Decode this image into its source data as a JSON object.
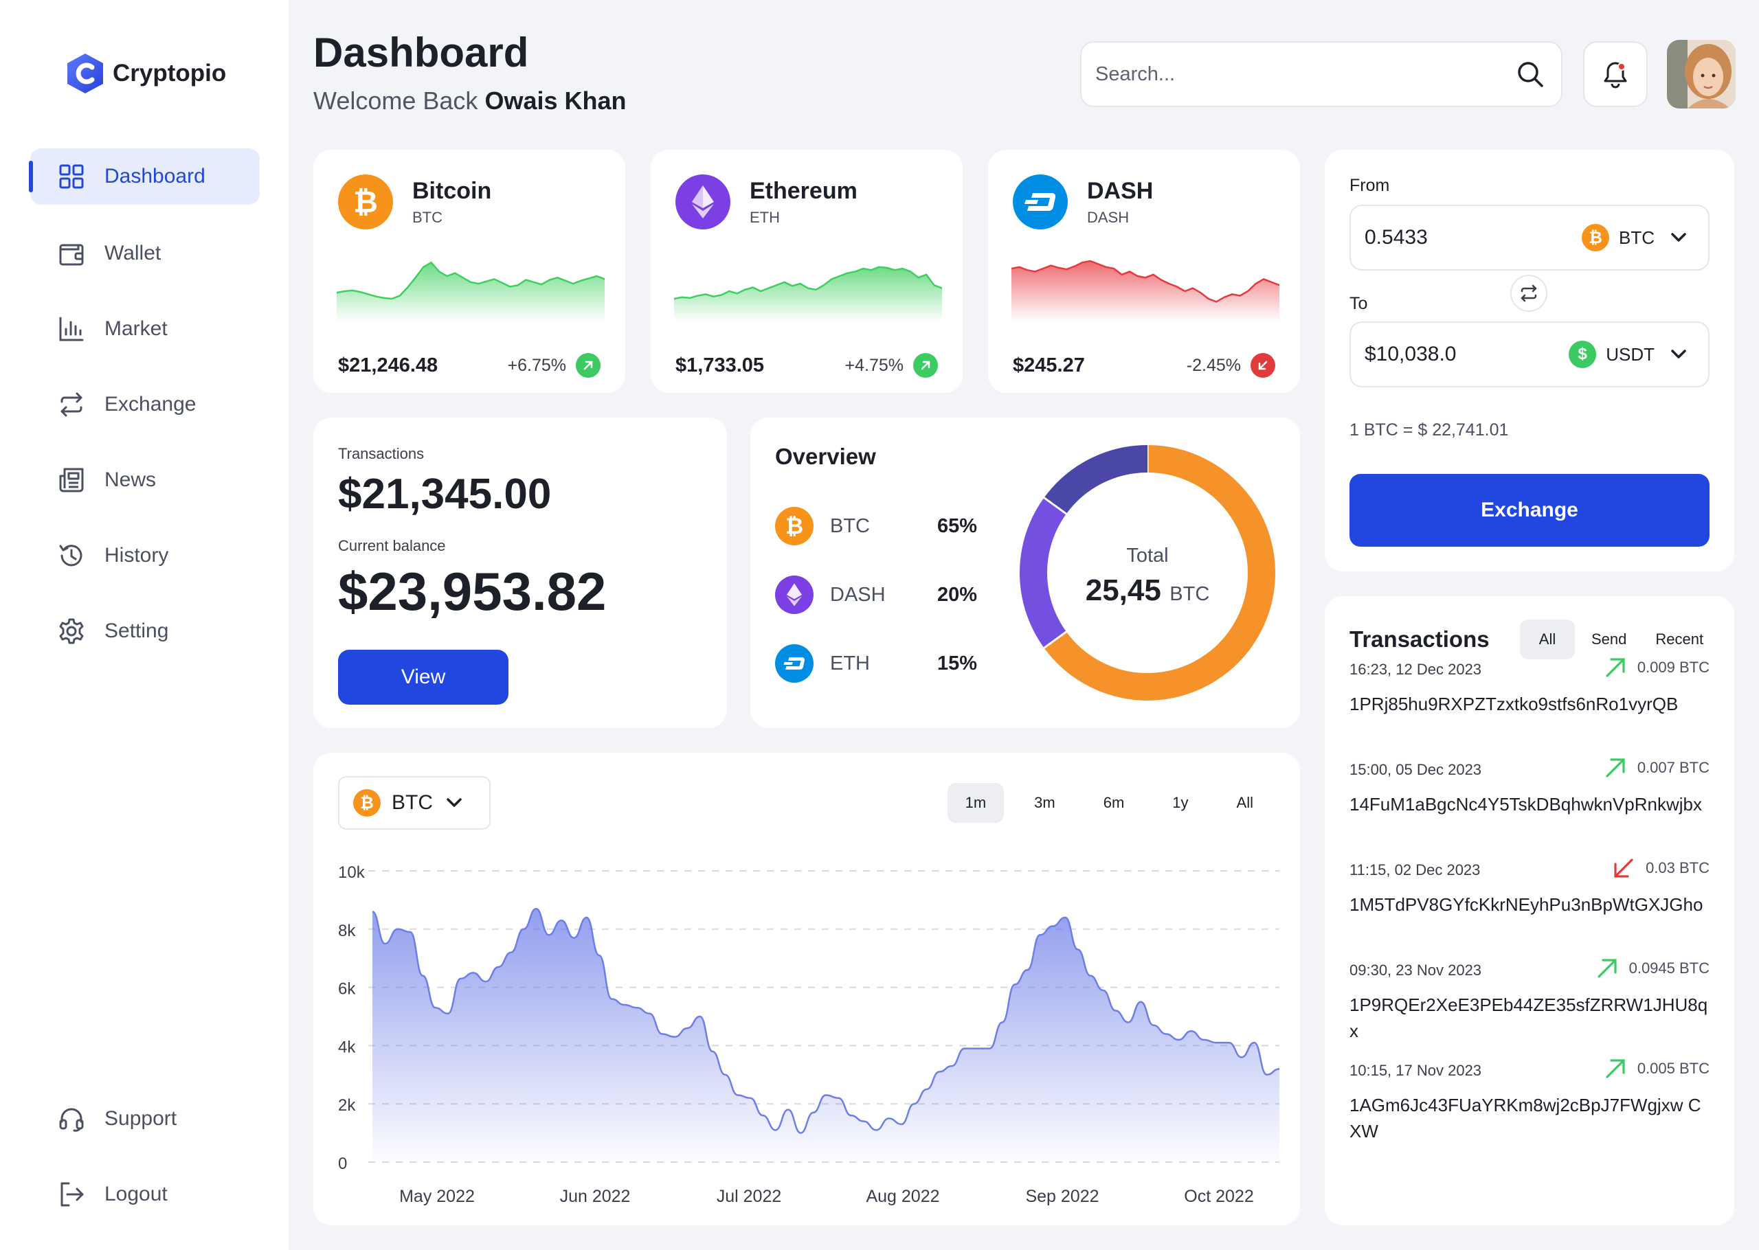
{
  "brand": {
    "name": "Cryptopio"
  },
  "sidebar": {
    "items": [
      {
        "label": "Dashboard",
        "icon": "grid-icon",
        "active": true
      },
      {
        "label": "Wallet",
        "icon": "wallet-icon"
      },
      {
        "label": "Market",
        "icon": "bar-chart-icon"
      },
      {
        "label": "Exchange",
        "icon": "exchange-icon"
      },
      {
        "label": "News",
        "icon": "newspaper-icon"
      },
      {
        "label": "History",
        "icon": "history-icon"
      },
      {
        "label": "Setting",
        "icon": "gear-icon"
      }
    ],
    "bottom": [
      {
        "label": "Support",
        "icon": "headset-icon"
      },
      {
        "label": "Logout",
        "icon": "logout-icon"
      }
    ]
  },
  "header": {
    "title": "Dashboard",
    "welcome_prefix": "Welcome Back",
    "user_name": "Owais Khan",
    "search_placeholder": "Search..."
  },
  "coins": [
    {
      "name": "Bitcoin",
      "symbol": "BTC",
      "price": "$21,246.48",
      "change": "+6.75%",
      "trend": "up",
      "color": "#f7931a",
      "spark": [
        38,
        40,
        41,
        39,
        36,
        33,
        31,
        30,
        34,
        45,
        58,
        72,
        78,
        66,
        60,
        64,
        58,
        52,
        50,
        53,
        56,
        51,
        46,
        48,
        55,
        52,
        49,
        55,
        58,
        54,
        50,
        54,
        57,
        60,
        56
      ]
    },
    {
      "name": "Ethereum",
      "symbol": "ETH",
      "price": "$1,733.05",
      "change": "+4.75%",
      "trend": "up",
      "color": "#7b3fe4",
      "spark": [
        30,
        32,
        31,
        34,
        36,
        33,
        35,
        40,
        37,
        42,
        45,
        40,
        44,
        48,
        52,
        47,
        50,
        44,
        42,
        48,
        56,
        60,
        64,
        66,
        70,
        68,
        72,
        71,
        68,
        70,
        66,
        58,
        62,
        48,
        44
      ]
    },
    {
      "name": "DASH",
      "symbol": "DASH",
      "price": "$245.27",
      "change": "-2.45%",
      "trend": "down",
      "color": "#008de4",
      "spark": [
        70,
        72,
        68,
        66,
        70,
        74,
        71,
        69,
        73,
        78,
        80,
        76,
        72,
        70,
        62,
        66,
        60,
        58,
        62,
        55,
        50,
        46,
        40,
        44,
        38,
        30,
        26,
        32,
        36,
        34,
        40,
        50,
        56,
        52,
        48
      ]
    }
  ],
  "balance": {
    "transactions_label": "Transactions",
    "transactions_value": "$21,345.00",
    "current_label": "Current balance",
    "current_value": "$23,953.82",
    "view_label": "View"
  },
  "overview": {
    "title": "Overview",
    "rows": [
      {
        "symbol": "BTC",
        "pct": "65%",
        "color": "#f7931a"
      },
      {
        "symbol": "DASH",
        "pct": "20%",
        "color": "#7b3fe4"
      },
      {
        "symbol": "ETH",
        "pct": "15%",
        "color": "#008de4"
      }
    ],
    "donut": [
      {
        "label": "BTC",
        "value": 65,
        "color": "#f5922a"
      },
      {
        "label": "DASH",
        "value": 20,
        "color": "#7550e0"
      },
      {
        "label": "ETH",
        "value": 15,
        "color": "#4a47a6"
      }
    ],
    "total_label": "Total",
    "total_value": "25,45",
    "total_unit": "BTC"
  },
  "exchange": {
    "from_label": "From",
    "from_value": "0.5433",
    "from_currency": "BTC",
    "to_label": "To",
    "to_value": "$10,038.0",
    "to_currency": "USDT",
    "rate": "1 BTC = $ 22,741.01",
    "button_label": "Exchange"
  },
  "transactions": {
    "title": "Transactions",
    "tabs": [
      "All",
      "Send",
      "Recent"
    ],
    "active_tab": "All",
    "items": [
      {
        "time": "16:23, 12 Dec 2023",
        "amount": "0.009 BTC",
        "direction": "up",
        "hash": "1PRj85hu9RXPZTzxtko9stfs6nRo1vyrQB"
      },
      {
        "time": "15:00, 05 Dec 2023",
        "amount": "0.007 BTC",
        "direction": "up",
        "hash": "14FuM1aBgcNc4Y5TskDBqhwknVpRnkwjbx"
      },
      {
        "time": "11:15, 02 Dec 2023",
        "amount": "0.03 BTC",
        "direction": "down",
        "hash": "1M5TdPV8GYfcKkrNEyhPu3nBpWtGXJGho"
      },
      {
        "time": "09:30, 23 Nov 2023",
        "amount": "0.0945 BTC",
        "direction": "up",
        "hash": "1P9RQEr2XeE3PEb44ZE35sfZRRW1JHU8qx"
      },
      {
        "time": "10:15, 17 Nov 2023",
        "amount": "0.005 BTC",
        "direction": "up",
        "hash": "1AGm6Jc43FUaYRKm8wj2cBpJ7FWgjxw CXW"
      }
    ]
  },
  "price_panel": {
    "selected_coin": "BTC",
    "ranges": [
      "1m",
      "3m",
      "6m",
      "1y",
      "All"
    ],
    "active_range": "1m"
  },
  "chart_data": {
    "type": "area",
    "ylim": [
      0,
      10000
    ],
    "yticks": [
      "10k",
      "8k",
      "6k",
      "4k",
      "2k",
      "0"
    ],
    "ytick_values": [
      10000,
      8000,
      6000,
      4000,
      2000,
      0
    ],
    "xticks": [
      "May 2022",
      "Jun 2022",
      "Jul 2022",
      "Aug 2022",
      "Sep 2022",
      "Oct 2022"
    ],
    "xlabel": "",
    "ylabel": "",
    "series": [
      {
        "color": "#6d7ee8",
        "values": [
          8600,
          7500,
          8000,
          7900,
          6400,
          5300,
          5100,
          6300,
          6500,
          6200,
          6700,
          7200,
          8000,
          8700,
          7800,
          8300,
          7700,
          8400,
          7100,
          5600,
          5400,
          5300,
          5100,
          4400,
          4300,
          4600,
          5000,
          3800,
          3000,
          2300,
          2200,
          1600,
          1100,
          1800,
          1000,
          1700,
          2300,
          2200,
          1600,
          1400,
          1100,
          1500,
          1300,
          2000,
          2500,
          3100,
          3300,
          3900,
          3900,
          3900,
          4800,
          6100,
          6600,
          7800,
          8100,
          8400,
          7300,
          6400,
          5900,
          5200,
          4800,
          5500,
          4700,
          4400,
          4200,
          4500,
          4200,
          4100,
          4100,
          3600,
          4100,
          3000,
          3200
        ]
      }
    ]
  }
}
